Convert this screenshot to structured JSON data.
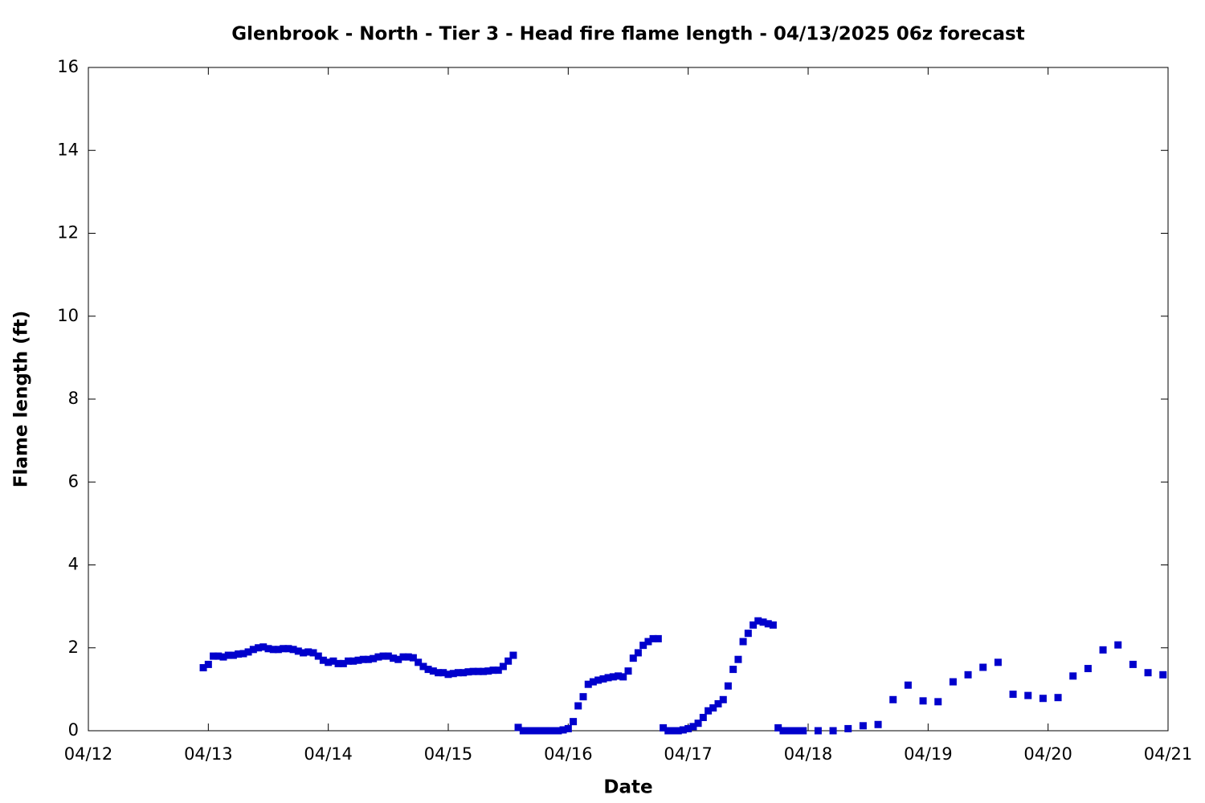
{
  "chart_data": {
    "type": "scatter",
    "title": "Glenbrook - North - Tier 3 - Head fire flame length - 04/13/2025 06z forecast",
    "xlabel": "Date",
    "ylabel": "Flame length (ft)",
    "color": "#0000cc",
    "xlim": [
      12,
      21
    ],
    "xticks": [
      {
        "value": 12,
        "label": "04/12"
      },
      {
        "value": 13,
        "label": "04/13"
      },
      {
        "value": 14,
        "label": "04/14"
      },
      {
        "value": 15,
        "label": "04/15"
      },
      {
        "value": 16,
        "label": "04/16"
      },
      {
        "value": 17,
        "label": "04/17"
      },
      {
        "value": 18,
        "label": "04/18"
      },
      {
        "value": 19,
        "label": "04/19"
      },
      {
        "value": 20,
        "label": "04/20"
      },
      {
        "value": 21,
        "label": "04/21"
      }
    ],
    "ylim": [
      0,
      16
    ],
    "yticks": [
      0,
      2,
      4,
      6,
      8,
      10,
      12,
      14,
      16
    ],
    "x": [
      12.958,
      13.0,
      13.042,
      13.083,
      13.125,
      13.167,
      13.208,
      13.25,
      13.292,
      13.333,
      13.375,
      13.417,
      13.458,
      13.5,
      13.542,
      13.583,
      13.625,
      13.667,
      13.708,
      13.75,
      13.792,
      13.833,
      13.875,
      13.917,
      13.958,
      14.0,
      14.042,
      14.083,
      14.125,
      14.167,
      14.208,
      14.25,
      14.292,
      14.333,
      14.375,
      14.417,
      14.458,
      14.5,
      14.542,
      14.583,
      14.625,
      14.667,
      14.708,
      14.75,
      14.792,
      14.833,
      14.875,
      14.917,
      14.958,
      15.0,
      15.042,
      15.083,
      15.125,
      15.167,
      15.208,
      15.25,
      15.292,
      15.333,
      15.375,
      15.417,
      15.458,
      15.5,
      15.542,
      15.583,
      15.625,
      15.667,
      15.708,
      15.75,
      15.792,
      15.833,
      15.875,
      15.917,
      15.958,
      16.0,
      16.042,
      16.083,
      16.125,
      16.167,
      16.208,
      16.25,
      16.292,
      16.333,
      16.375,
      16.417,
      16.458,
      16.5,
      16.542,
      16.583,
      16.625,
      16.667,
      16.708,
      16.75,
      16.792,
      16.833,
      16.875,
      16.917,
      16.958,
      17.0,
      17.042,
      17.083,
      17.125,
      17.167,
      17.208,
      17.25,
      17.292,
      17.333,
      17.375,
      17.417,
      17.458,
      17.5,
      17.542,
      17.583,
      17.625,
      17.667,
      17.708,
      17.75,
      17.792,
      17.833,
      17.875,
      17.917,
      17.958,
      18.083,
      18.208,
      18.333,
      18.458,
      18.583,
      18.708,
      18.833,
      18.958,
      19.083,
      19.208,
      19.333,
      19.458,
      19.583,
      19.708,
      19.833,
      19.958,
      20.083,
      20.208,
      20.333,
      20.458,
      20.583,
      20.708,
      20.833,
      20.958
    ],
    "values": [
      1.52,
      1.6,
      1.8,
      1.8,
      1.78,
      1.82,
      1.82,
      1.85,
      1.86,
      1.9,
      1.96,
      2.0,
      2.02,
      1.98,
      1.96,
      1.96,
      1.98,
      1.98,
      1.96,
      1.92,
      1.88,
      1.9,
      1.88,
      1.8,
      1.7,
      1.65,
      1.68,
      1.62,
      1.62,
      1.68,
      1.68,
      1.7,
      1.72,
      1.72,
      1.74,
      1.78,
      1.8,
      1.8,
      1.75,
      1.72,
      1.78,
      1.78,
      1.76,
      1.65,
      1.55,
      1.48,
      1.44,
      1.4,
      1.4,
      1.36,
      1.38,
      1.4,
      1.4,
      1.42,
      1.43,
      1.43,
      1.43,
      1.44,
      1.46,
      1.46,
      1.55,
      1.68,
      1.82,
      0.08,
      0,
      0,
      0,
      0,
      0,
      0,
      0,
      0,
      0.02,
      0.05,
      0.22,
      0.6,
      0.82,
      1.12,
      1.18,
      1.22,
      1.25,
      1.28,
      1.3,
      1.32,
      1.3,
      1.44,
      1.75,
      1.88,
      2.06,
      2.15,
      2.22,
      2.22,
      0.07,
      0,
      0,
      0,
      0.02,
      0.05,
      0.1,
      0.18,
      0.32,
      0.48,
      0.55,
      0.65,
      0.75,
      1.08,
      1.48,
      1.72,
      2.15,
      2.35,
      2.55,
      2.65,
      2.62,
      2.58,
      2.55,
      0.07,
      0,
      0,
      0,
      0,
      0,
      0,
      0,
      0.05,
      0.12,
      0.15,
      0.75,
      1.1,
      0.72,
      0.7,
      1.18,
      1.35,
      1.53,
      1.65,
      0.88,
      0.85,
      0.78,
      0.8,
      1.32,
      1.5,
      1.95,
      2.07,
      1.6,
      1.4,
      1.35
    ]
  }
}
